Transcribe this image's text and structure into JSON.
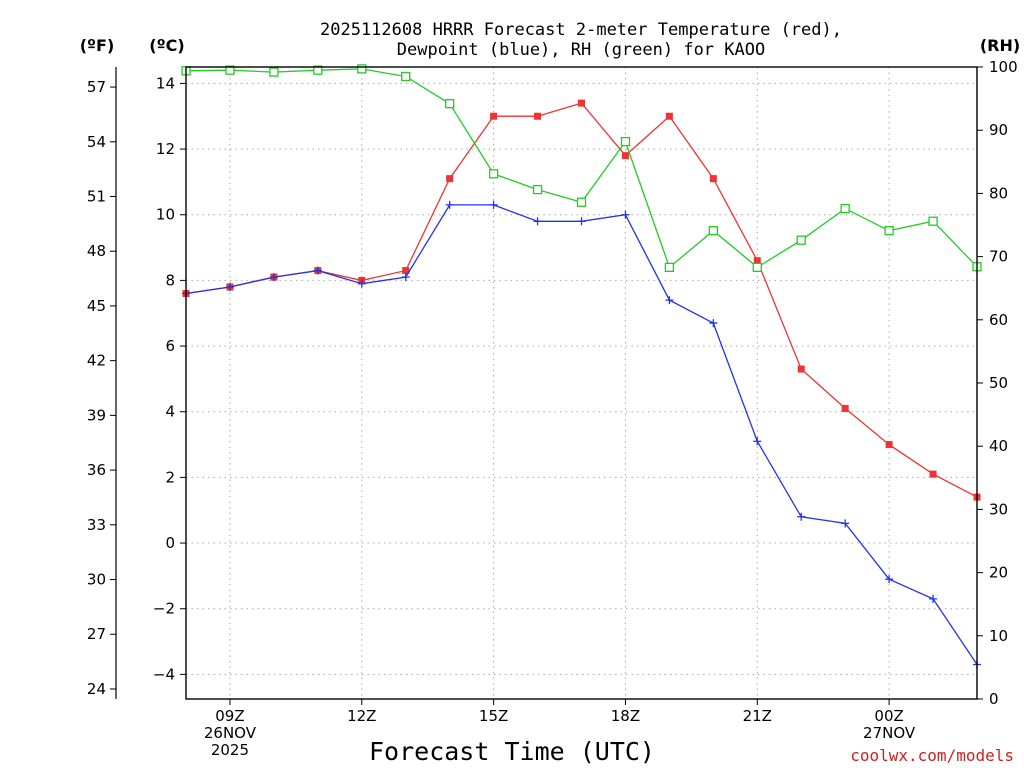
{
  "chart_data": {
    "type": "line",
    "title_line1": "2025112608 HRRR Forecast 2-meter Temperature (red),",
    "title_line2": "Dewpoint (blue), RH (green) for KAOO",
    "left_unit_f": "(ºF)",
    "left_unit_c": "(ºC)",
    "right_unit": "(RH)",
    "xlabel": "Forecast Time (UTC)",
    "credit": "coolwx.com/models",
    "hours": [
      8,
      9,
      10,
      11,
      12,
      13,
      14,
      15,
      16,
      17,
      18,
      19,
      20,
      21,
      22,
      23,
      24,
      25,
      26
    ],
    "xlim": [
      8,
      26
    ],
    "c_lim": [
      -4.75,
      14.5
    ],
    "c_ticks": [
      -4,
      -2,
      0,
      2,
      4,
      6,
      8,
      10,
      12,
      14
    ],
    "f_ticks": [
      24,
      27,
      30,
      33,
      36,
      39,
      42,
      45,
      48,
      51,
      54,
      57
    ],
    "rh_lim": [
      0,
      100
    ],
    "rh_ticks": [
      0,
      10,
      20,
      30,
      40,
      50,
      60,
      70,
      80,
      90,
      100
    ],
    "x_ticks": [
      {
        "hour": 9,
        "lines": [
          "09Z",
          "26NOV",
          "2025"
        ]
      },
      {
        "hour": 12,
        "lines": [
          "12Z"
        ]
      },
      {
        "hour": 15,
        "lines": [
          "15Z"
        ]
      },
      {
        "hour": 18,
        "lines": [
          "18Z"
        ]
      },
      {
        "hour": 21,
        "lines": [
          "21Z"
        ]
      },
      {
        "hour": 24,
        "lines": [
          "00Z",
          "27NOV"
        ]
      }
    ],
    "series": [
      {
        "name": "Temperature",
        "axis": "celsius",
        "color": "#ee3333",
        "marker": "filled-square",
        "values": [
          7.6,
          7.8,
          8.1,
          8.3,
          8.0,
          8.3,
          11.1,
          13.0,
          13.0,
          13.4,
          11.8,
          13.0,
          11.1,
          8.6,
          5.3,
          4.1,
          3.0,
          2.1,
          1.4
        ]
      },
      {
        "name": "Dewpoint",
        "axis": "celsius",
        "color": "#2233ee",
        "marker": "plus",
        "values": [
          7.6,
          7.8,
          8.1,
          8.3,
          7.9,
          8.1,
          10.3,
          10.3,
          9.8,
          9.8,
          10.0,
          7.4,
          6.7,
          3.1,
          0.8,
          0.6,
          -1.1,
          -1.7,
          -3.7
        ]
      },
      {
        "name": "RH",
        "axis": "rh",
        "color": "#22cc22",
        "marker": "open-square",
        "values": [
          99.4,
          99.5,
          99.2,
          99.5,
          99.7,
          98.5,
          94.2,
          83.1,
          80.6,
          78.6,
          88.2,
          68.3,
          74.1,
          68.3,
          72.6,
          77.6,
          74.1,
          75.6,
          68.4
        ]
      }
    ]
  }
}
